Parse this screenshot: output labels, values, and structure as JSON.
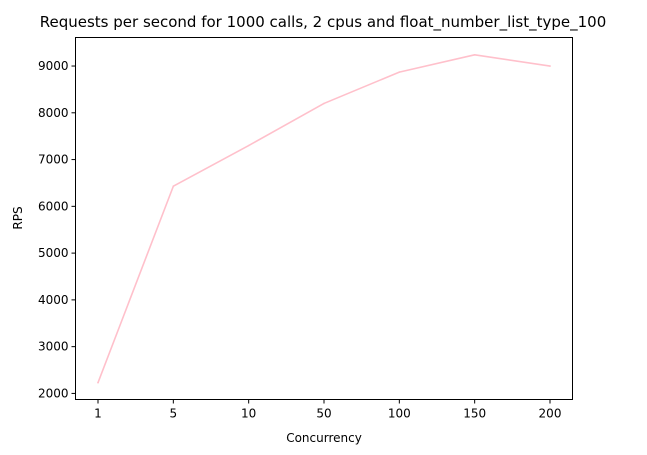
{
  "chart_data": {
    "type": "line",
    "title": "Requests per second for 1000 calls, 2 cpus and float_number_list_type_100",
    "xlabel": "Concurrency",
    "ylabel": "RPS",
    "categories": [
      "1",
      "5",
      "10",
      "50",
      "100",
      "150",
      "200"
    ],
    "series": [
      {
        "values": [
          2230,
          6430,
          7300,
          8200,
          8870,
          9240,
          9000
        ],
        "color": "#ffc0cb"
      }
    ],
    "yticks": [
      2000,
      3000,
      4000,
      5000,
      6000,
      7000,
      8000,
      9000
    ],
    "ylim": [
      1870,
      9610
    ],
    "grid": false,
    "x_scale": "categorical"
  }
}
